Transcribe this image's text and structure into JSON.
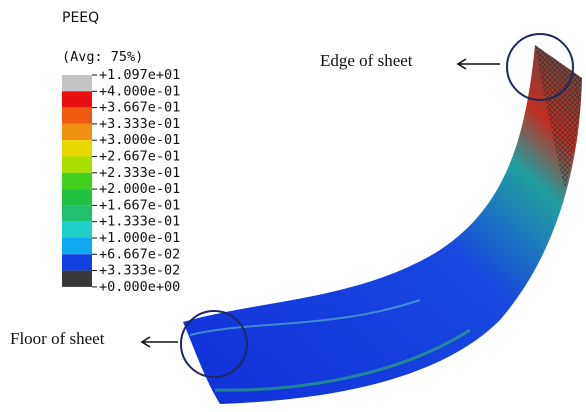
{
  "title": "PEEQ",
  "subtitle": "(Avg: 75%)",
  "legend": {
    "labels": [
      "+1.097e+01",
      "+4.000e-01",
      "+3.667e-01",
      "+3.333e-01",
      "+3.000e-01",
      "+2.667e-01",
      "+2.333e-01",
      "+2.000e-01",
      "+1.667e-01",
      "+1.333e-01",
      "+1.000e-01",
      "+6.667e-02",
      "+3.333e-02",
      "+0.000e+00"
    ],
    "colors": [
      "#c4c4c4",
      "#e81010",
      "#f05a10",
      "#f09010",
      "#e8d800",
      "#a8e000",
      "#40d020",
      "#20c040",
      "#20c070",
      "#20d0c8",
      "#10a8f0",
      "#1040e0",
      "#383838"
    ]
  },
  "annotations": {
    "edge": "Edge of sheet",
    "floor": "Floor of sheet"
  }
}
